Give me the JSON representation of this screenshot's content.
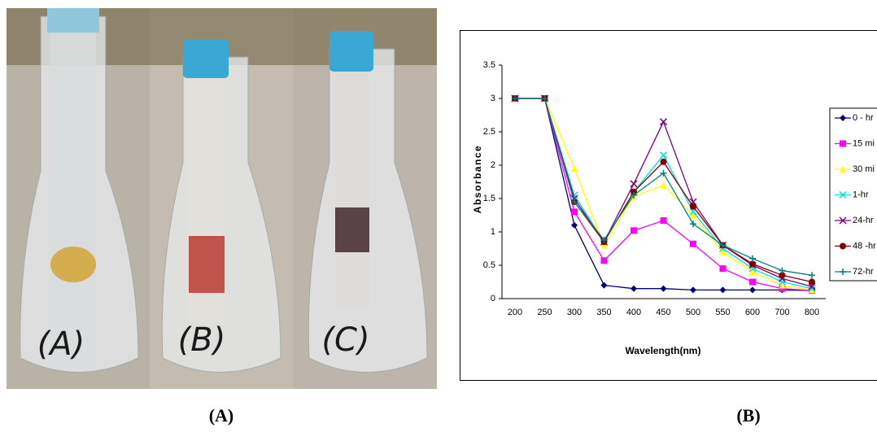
{
  "photo_labels": [
    "(A)",
    "(B)",
    "(C)"
  ],
  "captions": [
    "(A)",
    "(B)"
  ],
  "chart_data": {
    "type": "line",
    "ylabel": "Absorbance",
    "xlabel": "Wavelength(nm)",
    "categories": [
      "200",
      "250",
      "300",
      "350",
      "400",
      "450",
      "500",
      "550",
      "600",
      "700",
      "800"
    ],
    "ylim": [
      0,
      3.5
    ],
    "yticks": [
      0,
      0.5,
      1,
      1.5,
      2,
      2.5,
      3,
      3.5
    ],
    "grid": false,
    "legend": "right",
    "series": [
      {
        "name": "0 - hr",
        "color": "#000080",
        "marker": "diamond",
        "values": [
          3,
          3,
          1.1,
          0.2,
          0.15,
          0.15,
          0.13,
          0.13,
          0.13,
          0.13,
          0.12
        ]
      },
      {
        "name": "15 mi",
        "color": "#ff00ff",
        "marker": "square",
        "values": [
          3,
          3,
          1.3,
          0.57,
          1.02,
          1.17,
          0.82,
          0.45,
          0.25,
          0.15,
          0.12
        ]
      },
      {
        "name": "30 mi",
        "color": "#ffff00",
        "marker": "triangle",
        "values": [
          3,
          3,
          1.95,
          0.8,
          1.53,
          1.7,
          1.25,
          0.7,
          0.4,
          0.2,
          0.13
        ]
      },
      {
        "name": "1-hr",
        "color": "#00e0e0",
        "marker": "x",
        "values": [
          3,
          3,
          1.55,
          0.85,
          1.6,
          2.15,
          1.3,
          0.75,
          0.45,
          0.25,
          0.15
        ]
      },
      {
        "name": "24-hr",
        "color": "#800080",
        "marker": "x",
        "values": [
          3,
          3,
          1.5,
          0.85,
          1.72,
          2.65,
          1.45,
          0.8,
          0.5,
          0.3,
          0.18
        ]
      },
      {
        "name": "48 -hr",
        "color": "#800000",
        "marker": "circle",
        "values": [
          3,
          3,
          1.45,
          0.85,
          1.6,
          2.05,
          1.38,
          0.8,
          0.52,
          0.35,
          0.25
        ]
      },
      {
        "name": "72-hr",
        "color": "#008080",
        "marker": "plus",
        "values": [
          3,
          3,
          1.45,
          0.88,
          1.55,
          1.88,
          1.12,
          0.8,
          0.6,
          0.42,
          0.35
        ]
      }
    ]
  }
}
